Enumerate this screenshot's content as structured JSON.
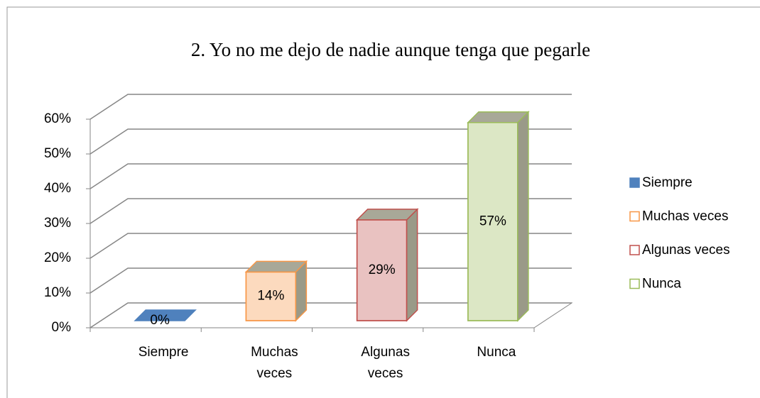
{
  "chart_data": {
    "type": "bar3d",
    "title": "2. Yo no me dejo de nadie aunque tenga que pegarle",
    "categories": [
      "Siempre",
      "Muchas veces",
      "Algunas veces",
      "Nunca"
    ],
    "values": [
      0,
      14,
      29,
      57
    ],
    "value_labels": [
      "0%",
      "14%",
      "29%",
      "57%"
    ],
    "colors": [
      "#4f81bd",
      "#f79646",
      "#c0504d",
      "#9bbb59"
    ],
    "ylim": [
      0,
      60
    ],
    "yticks": [
      {
        "value": 0,
        "label": "0%"
      },
      {
        "value": 10,
        "label": "10%"
      },
      {
        "value": 20,
        "label": "20%"
      },
      {
        "value": 30,
        "label": "30%"
      },
      {
        "value": 40,
        "label": "40%"
      },
      {
        "value": 50,
        "label": "50%"
      },
      {
        "value": 60,
        "label": "60%"
      }
    ],
    "grid": true,
    "legend": "right"
  }
}
